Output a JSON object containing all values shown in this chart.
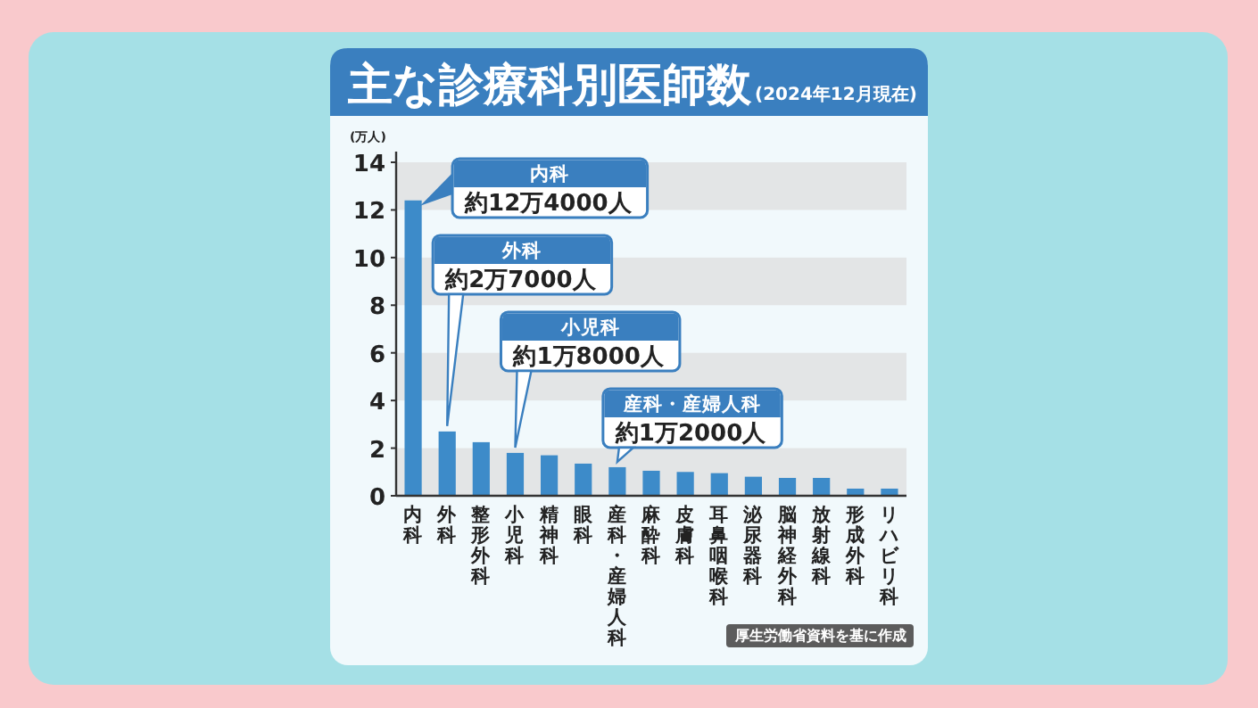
{
  "chart_data": {
    "type": "bar",
    "title": "主な診療科別医師数",
    "subtitle": "(2024年12月現在)",
    "ylabel": "(万人)",
    "categories": [
      "内科",
      "外科",
      "整形外科",
      "小児科",
      "精神科",
      "眼科",
      "産科・産婦人科",
      "麻酔科",
      "皮膚科",
      "耳鼻咽喉科",
      "泌尿器科",
      "脳神経外科",
      "放射線科",
      "形成外科",
      "リハビリ科"
    ],
    "values": [
      12.4,
      2.7,
      2.25,
      1.8,
      1.7,
      1.35,
      1.2,
      1.05,
      1.0,
      0.95,
      0.8,
      0.75,
      0.75,
      0.3,
      0.3
    ],
    "color": "#3d8bc9",
    "ylim": [
      0,
      14
    ],
    "yticks": [
      0,
      2,
      4,
      6,
      8,
      10,
      12,
      14
    ],
    "annotations": [
      "内科",
      {
        "text": "約12万4000人",
        "x": "内科",
        "y": 12.4
      },
      "外科",
      {
        "text": "約2万7000人",
        "x": "外科",
        "y": 2.7
      },
      "小児科",
      {
        "text": "約1万8000人",
        "x": "小児科",
        "y": 1.8
      },
      "産科・産婦人科",
      {
        "text": "約1万2000人",
        "x": "産科・産婦人科",
        "y": 1.2
      },
      "厚生労働省資料を基に作成"
    ]
  }
}
